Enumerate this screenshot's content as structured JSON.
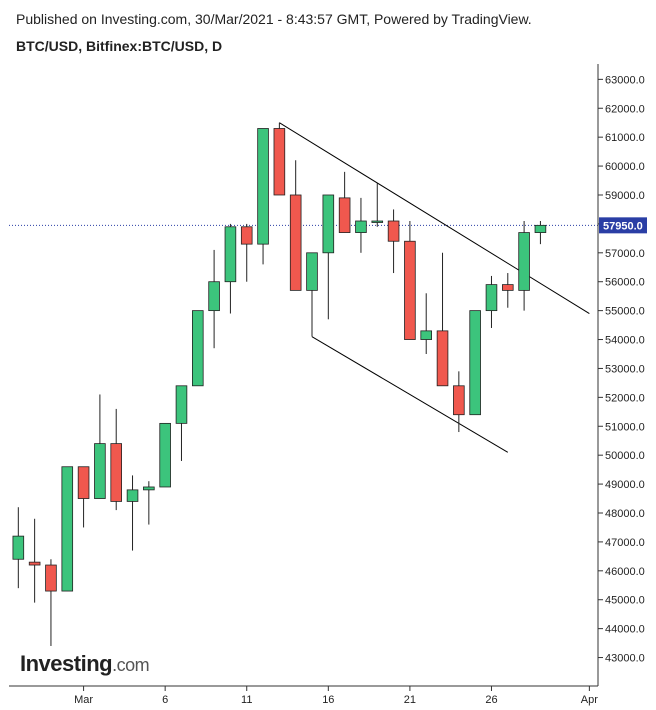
{
  "header": {
    "published": "Published on Investing.com, 30/Mar/2021 - 8:43:57 GMT, Powered by TradingView.",
    "symbol": "BTC/USD, Bitfinex:BTC/USD, D"
  },
  "logo": {
    "main": "Investing",
    "suffix": ".com"
  },
  "colors": {
    "up": "#3cc47c",
    "down": "#f0584e",
    "axis": "#333333",
    "last_price_bg": "#2a3ea5",
    "dotted_line": "#2a3ea5",
    "trendline": "#000000"
  },
  "chart_data": {
    "type": "candlestick",
    "title": "BTC/USD, Bitfinex:BTC/USD, D",
    "y_axis_position": "right",
    "ylim": [
      42500,
      63600
    ],
    "yticks": [
      43000,
      44000,
      45000,
      46000,
      47000,
      48000,
      49000,
      50000,
      51000,
      52000,
      53000,
      54000,
      55000,
      56000,
      57000,
      58000,
      59000,
      60000,
      61000,
      62000,
      63000
    ],
    "ytick_labels": [
      "43000.0",
      "44000.0",
      "45000.0",
      "46000.0",
      "47000.0",
      "48000.0",
      "49000.0",
      "50000.0",
      "51000.0",
      "52000.0",
      "53000.0",
      "54000.0",
      "55000.0",
      "56000.0",
      "57000.0",
      "58000.0",
      "59000.0",
      "60000.0",
      "61000.0",
      "62000.0",
      "63000.0"
    ],
    "xlim": [
      "2021-02-24",
      "2021-04-03"
    ],
    "xticks": [
      {
        "date": "2021-03-01",
        "label": "Mar"
      },
      {
        "date": "2021-03-06",
        "label": "6"
      },
      {
        "date": "2021-03-11",
        "label": "11"
      },
      {
        "date": "2021-03-16",
        "label": "16"
      },
      {
        "date": "2021-03-21",
        "label": "21"
      },
      {
        "date": "2021-03-26",
        "label": "26"
      },
      {
        "date": "2021-04-01",
        "label": "Apr"
      }
    ],
    "last_price": 57950,
    "last_price_label": "57950.0",
    "candles": [
      {
        "date": "2021-02-25",
        "open": 46400,
        "high": 48200,
        "low": 45400,
        "close": 47200
      },
      {
        "date": "2021-02-26",
        "open": 46300,
        "high": 47800,
        "low": 44900,
        "close": 46200
      },
      {
        "date": "2021-02-27",
        "open": 46200,
        "high": 46400,
        "low": 43400,
        "close": 45300
      },
      {
        "date": "2021-02-28",
        "open": 45300,
        "high": 49600,
        "low": 45300,
        "close": 49600
      },
      {
        "date": "2021-03-01",
        "open": 49600,
        "high": 49600,
        "low": 47500,
        "close": 48500
      },
      {
        "date": "2021-03-02",
        "open": 48500,
        "high": 52100,
        "low": 48500,
        "close": 50400
      },
      {
        "date": "2021-03-03",
        "open": 50400,
        "high": 51600,
        "low": 48100,
        "close": 48400
      },
      {
        "date": "2021-03-04",
        "open": 48400,
        "high": 49300,
        "low": 46700,
        "close": 48800
      },
      {
        "date": "2021-03-05",
        "open": 48800,
        "high": 49100,
        "low": 47600,
        "close": 48900
      },
      {
        "date": "2021-03-06",
        "open": 48900,
        "high": 51100,
        "low": 48900,
        "close": 51100
      },
      {
        "date": "2021-03-07",
        "open": 51100,
        "high": 52400,
        "low": 49800,
        "close": 52400
      },
      {
        "date": "2021-03-08",
        "open": 52400,
        "high": 55000,
        "low": 52400,
        "close": 55000
      },
      {
        "date": "2021-03-09",
        "open": 55000,
        "high": 57100,
        "low": 53700,
        "close": 56000
      },
      {
        "date": "2021-03-10",
        "open": 56000,
        "high": 58000,
        "low": 54900,
        "close": 57900
      },
      {
        "date": "2021-03-11",
        "open": 57900,
        "high": 58000,
        "low": 56000,
        "close": 57300
      },
      {
        "date": "2021-03-12",
        "open": 57300,
        "high": 61300,
        "low": 56600,
        "close": 61300
      },
      {
        "date": "2021-03-13",
        "open": 61300,
        "high": 61500,
        "low": 59000,
        "close": 59000
      },
      {
        "date": "2021-03-14",
        "open": 59000,
        "high": 60200,
        "low": 55700,
        "close": 55700
      },
      {
        "date": "2021-03-15",
        "open": 55700,
        "high": 57000,
        "low": 54100,
        "close": 57000
      },
      {
        "date": "2021-03-16",
        "open": 57000,
        "high": 59000,
        "low": 54700,
        "close": 59000
      },
      {
        "date": "2021-03-17",
        "open": 58900,
        "high": 59800,
        "low": 57700,
        "close": 57700
      },
      {
        "date": "2021-03-18",
        "open": 57700,
        "high": 58900,
        "low": 57000,
        "close": 58100
      },
      {
        "date": "2021-03-19",
        "open": 58100,
        "high": 59400,
        "low": 57900,
        "close": 58100
      },
      {
        "date": "2021-03-20",
        "open": 58100,
        "high": 58500,
        "low": 56300,
        "close": 57400
      },
      {
        "date": "2021-03-21",
        "open": 57400,
        "high": 58100,
        "low": 54000,
        "close": 54000
      },
      {
        "date": "2021-03-22",
        "open": 54000,
        "high": 55600,
        "low": 53500,
        "close": 54300
      },
      {
        "date": "2021-03-23",
        "open": 54300,
        "high": 57000,
        "low": 52400,
        "close": 52400
      },
      {
        "date": "2021-03-24",
        "open": 52400,
        "high": 52900,
        "low": 50800,
        "close": 51400
      },
      {
        "date": "2021-03-25",
        "open": 51400,
        "high": 55000,
        "low": 51400,
        "close": 55000
      },
      {
        "date": "2021-03-26",
        "open": 55000,
        "high": 56200,
        "low": 54400,
        "close": 55900
      },
      {
        "date": "2021-03-27",
        "open": 55900,
        "high": 56300,
        "low": 55100,
        "close": 55700
      },
      {
        "date": "2021-03-28",
        "open": 55700,
        "high": 58100,
        "low": 55000,
        "close": 57700
      },
      {
        "date": "2021-03-29",
        "open": 57700,
        "high": 58100,
        "low": 57300,
        "close": 57950
      }
    ],
    "trendlines": [
      {
        "from": {
          "date": "2021-03-13",
          "price": 61500
        },
        "to": {
          "date": "2021-04-01",
          "price": 54900
        }
      },
      {
        "from": {
          "date": "2021-03-15",
          "price": 54100
        },
        "to": {
          "date": "2021-03-27",
          "price": 50100
        }
      }
    ]
  }
}
